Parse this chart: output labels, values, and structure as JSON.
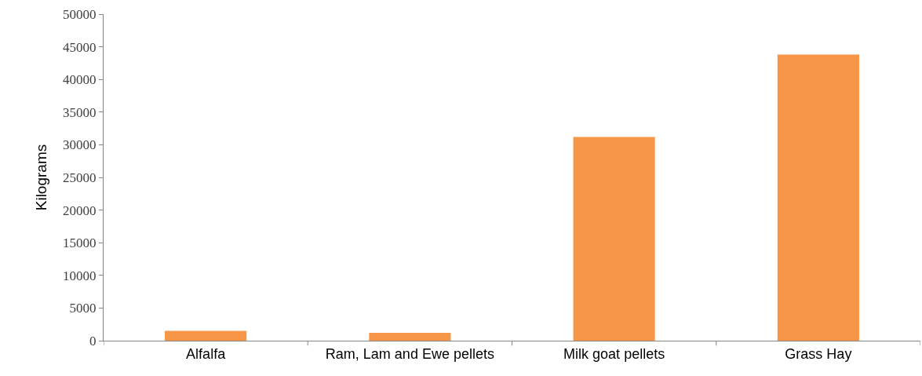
{
  "chart_data": {
    "type": "bar",
    "ylabel": "Kilograms",
    "categories": [
      "Alfalfa",
      "Ram, Lam and Ewe pellets",
      "Milk goat pellets",
      "Grass Hay"
    ],
    "values": [
      1500,
      1200,
      31200,
      43800
    ],
    "color": "#f79646",
    "ylim": [
      0,
      50000
    ],
    "yticks": [
      0,
      5000,
      10000,
      15000,
      20000,
      25000,
      30000,
      35000,
      40000,
      45000,
      50000
    ]
  }
}
